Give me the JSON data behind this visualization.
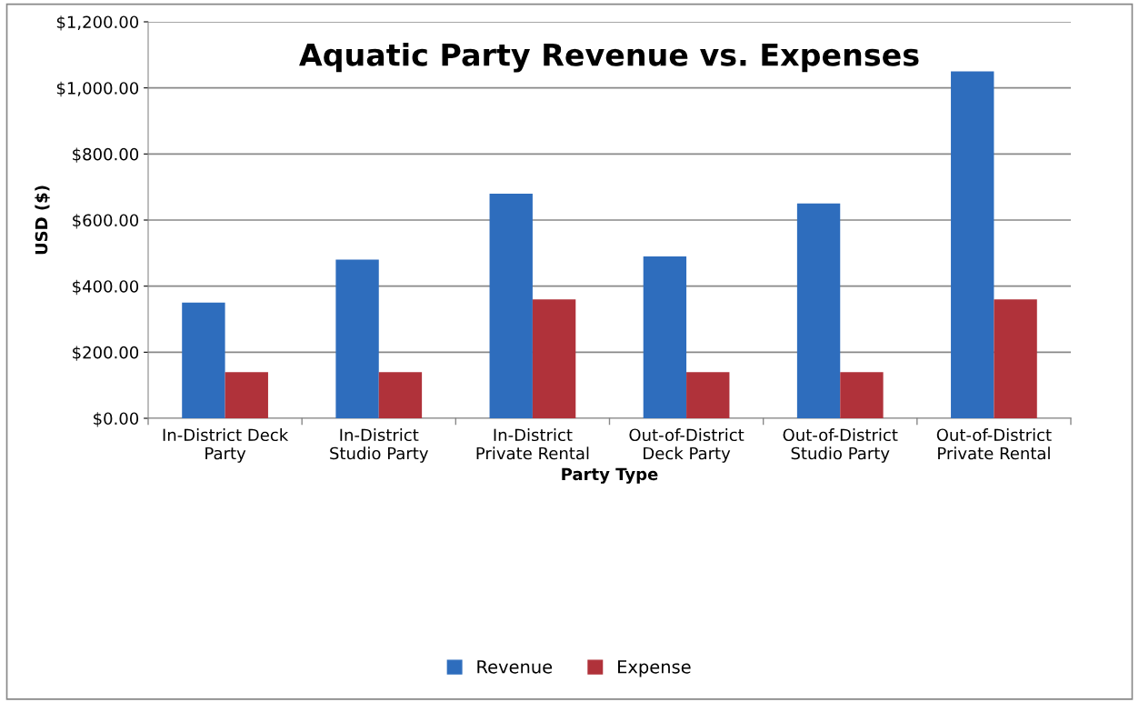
{
  "chart_data": {
    "type": "bar",
    "title": "Aquatic Party Revenue vs. Expenses",
    "xlabel": "Party Type",
    "ylabel": "USD ($)",
    "categories": [
      "In-District Deck\nParty",
      "In-District\nStudio Party",
      "In-District\nPrivate Rental",
      "Out-of-District\nDeck Party",
      "Out-of-District\nStudio Party",
      "Out-of-District\nPrivate Rental"
    ],
    "series": [
      {
        "name": "Revenue",
        "color": "#2e6dbd",
        "values": [
          350,
          480,
          680,
          490,
          650,
          1050
        ]
      },
      {
        "name": "Expense",
        "color": "#b0323a",
        "values": [
          140,
          140,
          360,
          140,
          140,
          360
        ]
      }
    ],
    "ylim": [
      0,
      1200
    ],
    "yticks": [
      {
        "value": 0,
        "label": "$0.00"
      },
      {
        "value": 200,
        "label": "$200.00"
      },
      {
        "value": 400,
        "label": "$400.00"
      },
      {
        "value": 600,
        "label": "$600.00"
      },
      {
        "value": 800,
        "label": "$800.00"
      },
      {
        "value": 1000,
        "label": "$1,000.00"
      },
      {
        "value": 1200,
        "label": "$1,200.00"
      }
    ],
    "grid": "y",
    "legend": "bottom"
  }
}
